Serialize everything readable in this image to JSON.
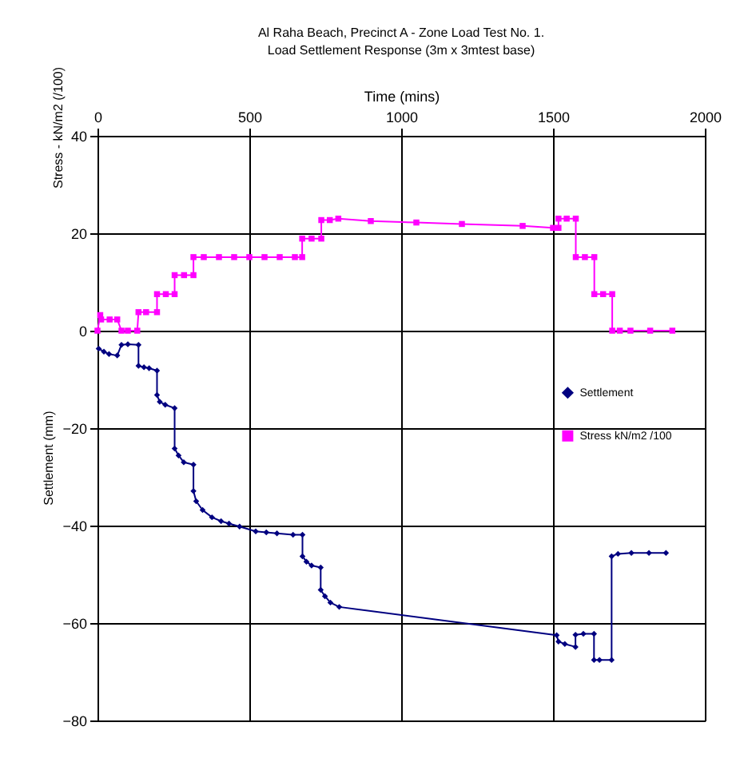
{
  "chart_data": {
    "type": "line",
    "title": "Al Raha Beach, Precinct A -  Zone Load Test No. 1.",
    "subtitle": "Load Settlement Response (3m x 3mtest base)",
    "xlabel": "Time (mins)",
    "ylabel": "Settlement (mm)",
    "annotations": [
      "Stress - kN/m2 (/100)"
    ],
    "xlim": [
      0,
      2000
    ],
    "xticks": [
      0,
      500,
      1000,
      1500,
      2000
    ],
    "ylim": [
      -80,
      40
    ],
    "yticks": [
      -80,
      -60,
      -40,
      -20,
      0,
      20,
      40
    ],
    "grid": true,
    "legend": "right",
    "series": [
      {
        "name": "Settlement",
        "color": "#000080",
        "marker": "diamond",
        "x": [
          4,
          21,
          38,
          65,
          79,
          100,
          135,
          135,
          153,
          170,
          196,
          196,
          205,
          223,
          254,
          254,
          267,
          284,
          316,
          316,
          325,
          346,
          377,
          407,
          433,
          468,
          521,
          556,
          591,
          644,
          675,
          675,
          688,
          705,
          735,
          735,
          749,
          767,
          796,
          1512,
          1518,
          1539,
          1574,
          1574,
          1600,
          1635,
          1635,
          1653,
          1693,
          1693,
          1714,
          1758,
          1816,
          1872
        ],
        "values": [
          -3.7,
          -4.3,
          -4.8,
          -5.1,
          -2.9,
          -2.8,
          -2.9,
          -7.2,
          -7.5,
          -7.7,
          -8.2,
          -13.2,
          -14.6,
          -15.2,
          -15.9,
          -24.2,
          -25.6,
          -27.0,
          -27.5,
          -32.9,
          -35.0,
          -36.8,
          -38.3,
          -39.1,
          -39.6,
          -40.2,
          -41.2,
          -41.4,
          -41.6,
          -41.9,
          -41.9,
          -46.3,
          -47.4,
          -48.2,
          -48.6,
          -53.2,
          -54.5,
          -55.8,
          -56.7,
          -62.5,
          -63.8,
          -64.3,
          -64.9,
          -62.4,
          -62.2,
          -62.2,
          -67.6,
          -67.6,
          -67.6,
          -46.3,
          -45.8,
          -45.6,
          -45.6,
          -45.6
        ]
      },
      {
        "name": "Stress kN/m2 /100",
        "color": "#ff00ff",
        "marker": "square",
        "x": [
          0,
          9,
          12,
          40,
          65,
          79,
          100,
          131,
          135,
          160,
          196,
          196,
          225,
          254,
          254,
          285,
          316,
          316,
          350,
          400,
          450,
          500,
          550,
          600,
          650,
          674,
          674,
          705,
          737,
          737,
          765,
          793,
          900,
          1050,
          1200,
          1400,
          1500,
          1518,
          1518,
          1545,
          1575,
          1575,
          1605,
          1636,
          1636,
          1665,
          1695,
          1695,
          1720,
          1755,
          1820,
          1893
        ],
        "values": [
          0,
          3.2,
          2.3,
          2.3,
          2.3,
          0,
          0,
          0,
          3.8,
          3.8,
          3.8,
          7.5,
          7.5,
          7.5,
          11.4,
          11.4,
          11.4,
          15.1,
          15.1,
          15.1,
          15.1,
          15.1,
          15.1,
          15.1,
          15.1,
          15.1,
          18.9,
          18.9,
          18.9,
          22.7,
          22.7,
          23.0,
          22.5,
          22.2,
          21.9,
          21.5,
          21.1,
          21.1,
          23.0,
          23.0,
          23.0,
          15.1,
          15.1,
          15.1,
          7.5,
          7.5,
          7.5,
          0,
          0,
          0,
          0,
          0
        ]
      }
    ]
  }
}
